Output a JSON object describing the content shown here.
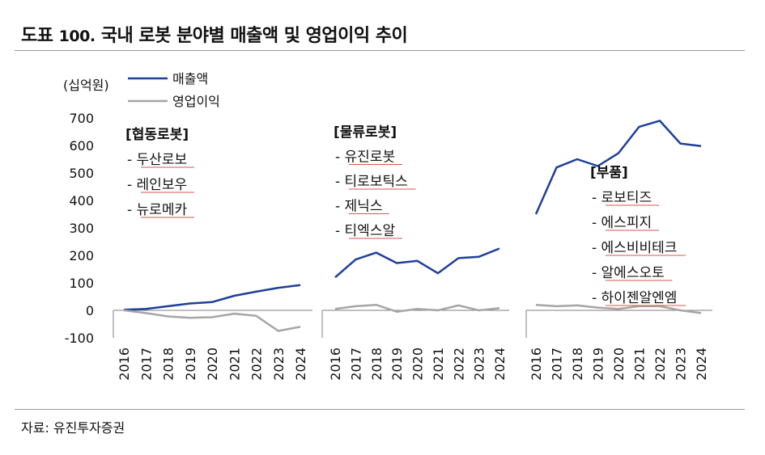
{
  "figure": {
    "prefix": "도표",
    "number": "100.",
    "title": "국내 로봇 분야별 매출액 및 영업이익 추이",
    "source": "자료: 유진투자증권"
  },
  "colors": {
    "revenue": "#1f3f99",
    "operating_income": "#a6a6a6",
    "underline": "#d9534f"
  },
  "chart_data": {
    "type": "line",
    "unit_label": "(십억원)",
    "ylim": [
      -100,
      700
    ],
    "yticks": [
      -100,
      0,
      100,
      200,
      300,
      400,
      500,
      600,
      700
    ],
    "legend": [
      "매출액",
      "영업이익"
    ],
    "panels": [
      {
        "group": "[협동로봇]",
        "companies": [
          "- 두산로보",
          "- 레인보우",
          "- 뉴로메카"
        ],
        "x": [
          "2016",
          "2017",
          "2018",
          "2019",
          "2020",
          "2021",
          "2022",
          "2023",
          "2024"
        ],
        "series": [
          {
            "name": "매출액",
            "values": [
              2,
              5,
              15,
              25,
              30,
              53,
              68,
              82,
              92
            ]
          },
          {
            "name": "영업이익",
            "values": [
              0,
              -10,
              -22,
              -27,
              -25,
              -12,
              -20,
              -75,
              -60
            ]
          }
        ]
      },
      {
        "group": "[물류로봇]",
        "companies": [
          "- 유진로봇",
          "- 티로보틱스",
          "- 제닉스",
          "- 티엑스알"
        ],
        "x": [
          "2016",
          "2017",
          "2018",
          "2019",
          "2020",
          "2021",
          "2022",
          "2023",
          "2024"
        ],
        "series": [
          {
            "name": "매출액",
            "values": [
              120,
              185,
              210,
              172,
              180,
              135,
              190,
              195,
              225
            ]
          },
          {
            "name": "영업이익",
            "values": [
              5,
              15,
              20,
              -5,
              5,
              0,
              18,
              0,
              8
            ]
          }
        ]
      },
      {
        "group": "[부품]",
        "companies": [
          "- 로보티즈",
          "- 에스피지",
          "- 에스비비테크",
          "- 알에스오토",
          "- 하이젠알엔엠"
        ],
        "x": [
          "2016",
          "2017",
          "2018",
          "2019",
          "2020",
          "2021",
          "2022",
          "2023",
          "2024"
        ],
        "series": [
          {
            "name": "매출액",
            "values": [
              350,
              520,
              550,
              525,
              572,
              668,
              690,
              607,
              598
            ]
          },
          {
            "name": "영업이익",
            "values": [
              20,
              15,
              18,
              10,
              5,
              15,
              15,
              0,
              -10
            ]
          }
        ]
      }
    ]
  }
}
